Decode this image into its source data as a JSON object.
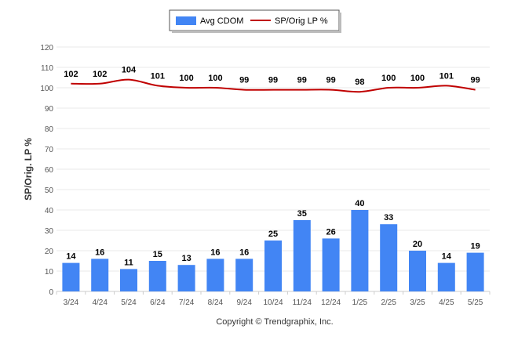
{
  "chart_data": {
    "type": "bar",
    "categories": [
      "3/24",
      "4/24",
      "5/24",
      "6/24",
      "7/24",
      "8/24",
      "9/24",
      "10/24",
      "11/24",
      "12/24",
      "1/25",
      "2/25",
      "3/25",
      "4/25",
      "5/25"
    ],
    "series": [
      {
        "name": "Avg CDOM",
        "type": "bar",
        "color": "#4285f4",
        "values": [
          14,
          16,
          11,
          15,
          13,
          16,
          16,
          25,
          35,
          26,
          40,
          33,
          20,
          14,
          19
        ]
      },
      {
        "name": "SP/Orig LP %",
        "type": "line",
        "color": "#c00000",
        "values": [
          102,
          102,
          104,
          101,
          100,
          100,
          99,
          99,
          99,
          99,
          98,
          100,
          100,
          101,
          99
        ]
      }
    ],
    "ylabel": "SP/Orig. LP %",
    "ylim": [
      0,
      120
    ],
    "yticks": [
      0,
      10,
      20,
      30,
      40,
      50,
      60,
      70,
      80,
      90,
      100,
      110,
      120
    ],
    "grid": true,
    "legend": "top-center"
  },
  "footer": "Copyright © Trendgraphix, Inc."
}
